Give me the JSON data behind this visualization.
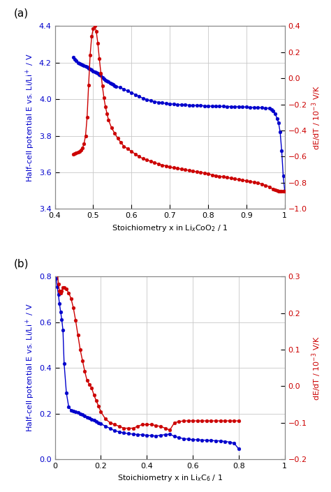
{
  "panel_a": {
    "title": "(a)",
    "xlabel": "Stoichiometry x in Li$_x$CoO$_2$ / 1",
    "ylabel_left": "Half-cell potential E vs. Li/Li$^+$ / V",
    "ylabel_right": "dE/dT / 10$^{-3}$ V/K",
    "xlim": [
      0.4,
      1.0
    ],
    "ylim_left": [
      3.4,
      4.4
    ],
    "ylim_right": [
      -1.0,
      0.4
    ],
    "xticks": [
      0.4,
      0.5,
      0.6,
      0.7,
      0.8,
      0.9,
      1.0
    ],
    "xtick_labels": [
      "0.4",
      "0.5",
      "0.6",
      "0.7",
      "0.8",
      "0.9",
      "1"
    ],
    "yticks_left": [
      3.4,
      3.6,
      3.8,
      4.0,
      4.2,
      4.4
    ],
    "yticks_right": [
      -1.0,
      -0.8,
      -0.6,
      -0.4,
      -0.2,
      0.0,
      0.2,
      0.4
    ],
    "blue_color": "#0000CC",
    "red_color": "#CC0000",
    "blue_x": [
      0.448,
      0.452,
      0.456,
      0.46,
      0.464,
      0.468,
      0.472,
      0.476,
      0.48,
      0.484,
      0.488,
      0.492,
      0.496,
      0.5,
      0.504,
      0.508,
      0.512,
      0.516,
      0.52,
      0.524,
      0.528,
      0.532,
      0.536,
      0.54,
      0.544,
      0.548,
      0.552,
      0.556,
      0.56,
      0.57,
      0.58,
      0.59,
      0.6,
      0.61,
      0.62,
      0.63,
      0.64,
      0.65,
      0.66,
      0.67,
      0.68,
      0.69,
      0.7,
      0.71,
      0.72,
      0.73,
      0.74,
      0.75,
      0.76,
      0.77,
      0.78,
      0.79,
      0.8,
      0.81,
      0.82,
      0.83,
      0.84,
      0.85,
      0.86,
      0.87,
      0.88,
      0.89,
      0.9,
      0.91,
      0.92,
      0.93,
      0.94,
      0.95,
      0.96,
      0.965,
      0.97,
      0.975,
      0.98,
      0.984,
      0.988,
      0.992,
      0.996,
      1.0
    ],
    "blue_y": [
      4.23,
      4.22,
      4.21,
      4.2,
      4.195,
      4.19,
      4.188,
      4.185,
      4.18,
      4.175,
      4.17,
      4.165,
      4.16,
      4.155,
      4.15,
      4.145,
      4.14,
      4.135,
      4.13,
      4.12,
      4.11,
      4.105,
      4.1,
      4.095,
      4.09,
      4.085,
      4.08,
      4.075,
      4.07,
      4.065,
      4.055,
      4.045,
      4.035,
      4.025,
      4.015,
      4.005,
      3.998,
      3.992,
      3.987,
      3.983,
      3.98,
      3.977,
      3.975,
      3.973,
      3.971,
      3.97,
      3.969,
      3.968,
      3.967,
      3.966,
      3.965,
      3.964,
      3.963,
      3.962,
      3.962,
      3.961,
      3.961,
      3.96,
      3.96,
      3.959,
      3.959,
      3.958,
      3.957,
      3.956,
      3.955,
      3.954,
      3.953,
      3.952,
      3.95,
      3.945,
      3.935,
      3.92,
      3.895,
      3.87,
      3.82,
      3.72,
      3.58,
      3.5
    ],
    "red_x": [
      0.448,
      0.452,
      0.456,
      0.46,
      0.464,
      0.468,
      0.472,
      0.476,
      0.48,
      0.484,
      0.488,
      0.492,
      0.496,
      0.5,
      0.504,
      0.508,
      0.512,
      0.516,
      0.52,
      0.524,
      0.528,
      0.532,
      0.536,
      0.54,
      0.548,
      0.556,
      0.564,
      0.572,
      0.58,
      0.59,
      0.6,
      0.61,
      0.62,
      0.63,
      0.64,
      0.65,
      0.66,
      0.67,
      0.68,
      0.69,
      0.7,
      0.71,
      0.72,
      0.73,
      0.74,
      0.75,
      0.76,
      0.77,
      0.78,
      0.79,
      0.8,
      0.81,
      0.82,
      0.83,
      0.84,
      0.85,
      0.86,
      0.87,
      0.88,
      0.89,
      0.9,
      0.91,
      0.92,
      0.93,
      0.94,
      0.95,
      0.96,
      0.97,
      0.975,
      0.98,
      0.984,
      0.988,
      0.992,
      0.996,
      1.0
    ],
    "red_y": [
      -0.58,
      -0.575,
      -0.57,
      -0.565,
      -0.56,
      -0.55,
      -0.535,
      -0.5,
      -0.44,
      -0.3,
      -0.05,
      0.18,
      0.32,
      0.38,
      0.4,
      0.36,
      0.27,
      0.15,
      0.04,
      -0.06,
      -0.15,
      -0.22,
      -0.27,
      -0.32,
      -0.38,
      -0.42,
      -0.46,
      -0.49,
      -0.52,
      -0.54,
      -0.56,
      -0.58,
      -0.6,
      -0.615,
      -0.625,
      -0.635,
      -0.645,
      -0.655,
      -0.665,
      -0.67,
      -0.68,
      -0.685,
      -0.69,
      -0.695,
      -0.7,
      -0.705,
      -0.71,
      -0.715,
      -0.72,
      -0.725,
      -0.73,
      -0.74,
      -0.745,
      -0.75,
      -0.755,
      -0.76,
      -0.765,
      -0.77,
      -0.775,
      -0.78,
      -0.785,
      -0.79,
      -0.795,
      -0.8,
      -0.81,
      -0.82,
      -0.83,
      -0.85,
      -0.855,
      -0.86,
      -0.862,
      -0.863,
      -0.864,
      -0.865,
      -0.865
    ]
  },
  "panel_b": {
    "title": "(b)",
    "xlabel": "Stoichiometry x in Li$_x$C$_6$ / 1",
    "ylabel_left": "Half-cell potential E vs. Li/Li$^+$ / V",
    "ylabel_right": "dE/dT / 10$^{-3}$ V/K",
    "xlim": [
      0.0,
      1.0
    ],
    "ylim_left": [
      0.0,
      0.8
    ],
    "ylim_right": [
      -0.2,
      0.3
    ],
    "xticks": [
      0.0,
      0.2,
      0.4,
      0.6,
      0.8,
      1.0
    ],
    "xtick_labels": [
      "0",
      "0.2",
      "0.4",
      "0.6",
      "0.8",
      "1"
    ],
    "yticks_left": [
      0.0,
      0.2,
      0.4,
      0.6,
      0.8
    ],
    "yticks_right": [
      -0.2,
      -0.1,
      0.0,
      0.1,
      0.2,
      0.3
    ],
    "blue_color": "#0000CC",
    "red_color": "#CC0000",
    "blue_x": [
      0.005,
      0.01,
      0.015,
      0.02,
      0.025,
      0.03,
      0.035,
      0.04,
      0.05,
      0.06,
      0.07,
      0.08,
      0.09,
      0.1,
      0.11,
      0.12,
      0.13,
      0.14,
      0.15,
      0.16,
      0.17,
      0.18,
      0.19,
      0.2,
      0.22,
      0.24,
      0.26,
      0.28,
      0.3,
      0.32,
      0.34,
      0.36,
      0.38,
      0.4,
      0.42,
      0.44,
      0.46,
      0.48,
      0.5,
      0.52,
      0.54,
      0.56,
      0.58,
      0.6,
      0.62,
      0.64,
      0.66,
      0.68,
      0.7,
      0.72,
      0.74,
      0.76,
      0.78,
      0.8
    ],
    "blue_y": [
      0.79,
      0.755,
      0.72,
      0.68,
      0.645,
      0.61,
      0.565,
      0.42,
      0.29,
      0.23,
      0.215,
      0.21,
      0.208,
      0.205,
      0.2,
      0.195,
      0.19,
      0.185,
      0.18,
      0.175,
      0.17,
      0.165,
      0.16,
      0.155,
      0.145,
      0.135,
      0.125,
      0.12,
      0.115,
      0.112,
      0.11,
      0.108,
      0.107,
      0.105,
      0.103,
      0.102,
      0.105,
      0.108,
      0.11,
      0.1,
      0.095,
      0.09,
      0.088,
      0.086,
      0.085,
      0.084,
      0.083,
      0.082,
      0.081,
      0.08,
      0.078,
      0.075,
      0.07,
      0.045
    ],
    "red_x": [
      0.005,
      0.01,
      0.015,
      0.02,
      0.025,
      0.03,
      0.035,
      0.04,
      0.05,
      0.06,
      0.07,
      0.08,
      0.09,
      0.1,
      0.11,
      0.12,
      0.13,
      0.14,
      0.15,
      0.16,
      0.17,
      0.18,
      0.19,
      0.2,
      0.22,
      0.24,
      0.26,
      0.28,
      0.3,
      0.32,
      0.34,
      0.36,
      0.38,
      0.4,
      0.42,
      0.44,
      0.46,
      0.48,
      0.5,
      0.52,
      0.54,
      0.56,
      0.58,
      0.6,
      0.62,
      0.64,
      0.66,
      0.68,
      0.7,
      0.72,
      0.74,
      0.76,
      0.78,
      0.8
    ],
    "red_y": [
      0.36,
      0.32,
      0.28,
      0.26,
      0.255,
      0.26,
      0.27,
      0.27,
      0.265,
      0.255,
      0.24,
      0.215,
      0.18,
      0.14,
      0.1,
      0.07,
      0.04,
      0.015,
      0.005,
      -0.005,
      -0.025,
      -0.04,
      -0.055,
      -0.07,
      -0.09,
      -0.1,
      -0.105,
      -0.11,
      -0.115,
      -0.115,
      -0.115,
      -0.11,
      -0.105,
      -0.105,
      -0.105,
      -0.108,
      -0.11,
      -0.115,
      -0.12,
      -0.1,
      -0.097,
      -0.095,
      -0.095,
      -0.095,
      -0.095,
      -0.095,
      -0.095,
      -0.095,
      -0.095,
      -0.095,
      -0.095,
      -0.095,
      -0.095,
      -0.095
    ]
  },
  "background_color": "#ffffff",
  "grid_color": "#c8c8c8",
  "marker_size": 3.5,
  "line_width": 1.0
}
